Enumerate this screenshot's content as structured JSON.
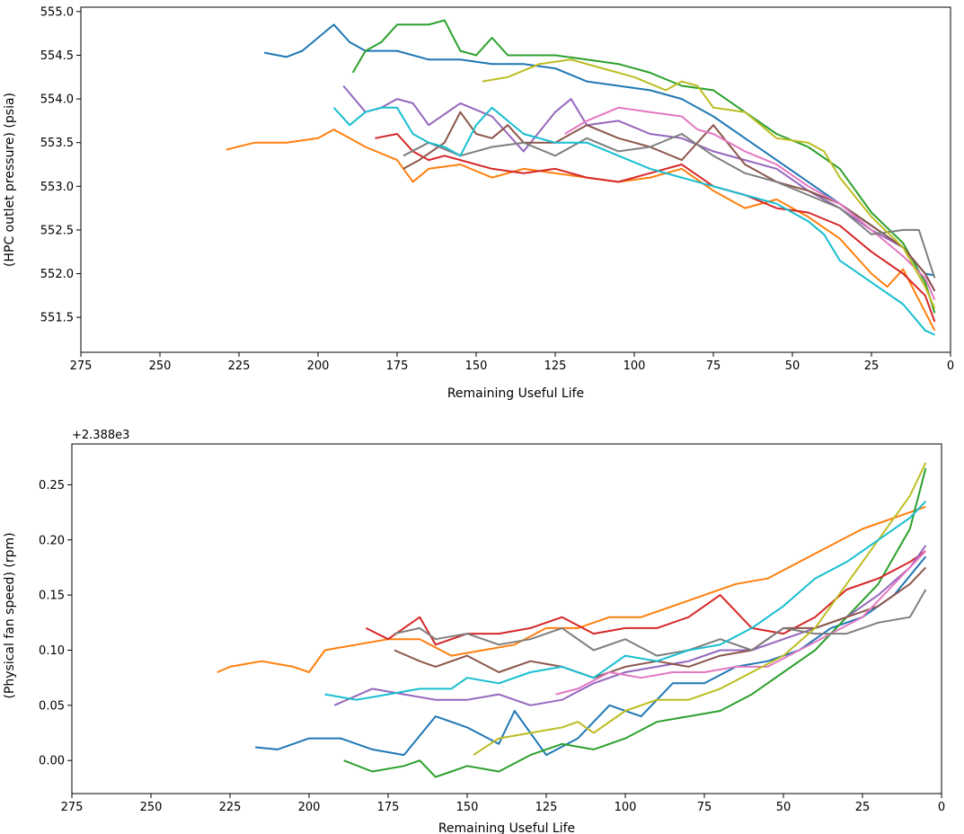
{
  "chart_data": [
    {
      "type": "line",
      "title": "",
      "xlabel": "Remaining Useful Life",
      "ylabel": "(HPC outlet pressure) (psia)",
      "offset_text": "",
      "x_inverted": true,
      "xlim": [
        275,
        0
      ],
      "ylim": [
        551.1,
        555.05
      ],
      "xticks": [
        275,
        250,
        225,
        200,
        175,
        150,
        125,
        100,
        75,
        50,
        25,
        0
      ],
      "yticks": [
        551.5,
        552.0,
        552.5,
        553.0,
        553.5,
        554.0,
        554.5,
        555.0
      ],
      "ytick_labels": [
        "551.5",
        "552.0",
        "552.5",
        "553.0",
        "553.5",
        "554.0",
        "554.5",
        "555.0"
      ],
      "grid": false,
      "series": [
        {
          "color": "#1f77b4",
          "x": [
            217,
            210,
            205,
            195,
            190,
            185,
            175,
            165,
            155,
            145,
            135,
            125,
            115,
            105,
            95,
            85,
            75,
            65,
            55,
            45,
            35,
            25,
            15,
            8,
            5
          ],
          "y": [
            554.53,
            554.48,
            554.55,
            554.85,
            554.65,
            554.55,
            554.55,
            554.45,
            554.45,
            554.4,
            554.4,
            554.35,
            554.2,
            554.15,
            554.1,
            554.0,
            553.8,
            553.55,
            553.3,
            553.05,
            552.8,
            552.55,
            552.3,
            552.0,
            551.98
          ]
        },
        {
          "color": "#ff7f0e",
          "x": [
            229,
            220,
            210,
            200,
            195,
            185,
            175,
            170,
            165,
            155,
            145,
            135,
            125,
            115,
            105,
            95,
            85,
            75,
            65,
            55,
            45,
            35,
            25,
            20,
            15,
            10,
            5
          ],
          "y": [
            553.42,
            553.5,
            553.5,
            553.55,
            553.65,
            553.45,
            553.3,
            553.05,
            553.2,
            553.25,
            553.1,
            553.2,
            553.15,
            553.1,
            553.05,
            553.1,
            553.2,
            552.95,
            552.75,
            552.85,
            552.65,
            552.4,
            552.0,
            551.85,
            552.05,
            551.7,
            551.35
          ]
        },
        {
          "color": "#2ca02c",
          "x": [
            189,
            185,
            180,
            175,
            170,
            165,
            160,
            155,
            150,
            145,
            140,
            135,
            125,
            115,
            105,
            95,
            85,
            75,
            65,
            55,
            45,
            35,
            25,
            15,
            8,
            5
          ],
          "y": [
            554.3,
            554.55,
            554.65,
            554.85,
            554.85,
            554.85,
            554.9,
            554.55,
            554.5,
            554.7,
            554.5,
            554.5,
            554.5,
            554.45,
            554.4,
            554.3,
            554.15,
            554.1,
            553.85,
            553.6,
            553.45,
            553.2,
            552.7,
            552.35,
            551.9,
            551.55
          ]
        },
        {
          "color": "#d62728",
          "x": [
            182,
            175,
            170,
            165,
            160,
            155,
            145,
            135,
            125,
            115,
            105,
            95,
            85,
            75,
            65,
            55,
            45,
            35,
            25,
            15,
            8,
            5
          ],
          "y": [
            553.55,
            553.6,
            553.4,
            553.3,
            553.35,
            553.3,
            553.2,
            553.15,
            553.2,
            553.1,
            553.05,
            553.15,
            553.25,
            553.0,
            552.9,
            552.75,
            552.7,
            552.55,
            552.25,
            552.0,
            551.75,
            551.45
          ]
        },
        {
          "color": "#9467bd",
          "x": [
            192,
            185,
            180,
            175,
            170,
            165,
            155,
            145,
            135,
            125,
            120,
            115,
            105,
            95,
            85,
            75,
            65,
            55,
            45,
            35,
            25,
            15,
            8,
            5
          ],
          "y": [
            554.15,
            553.85,
            553.9,
            554.0,
            553.95,
            553.7,
            553.95,
            553.8,
            553.4,
            553.85,
            554.0,
            553.7,
            553.75,
            553.6,
            553.55,
            553.4,
            553.3,
            553.2,
            552.95,
            552.75,
            552.5,
            552.3,
            552.0,
            551.8
          ]
        },
        {
          "color": "#8c564b",
          "x": [
            173,
            168,
            160,
            155,
            150,
            145,
            140,
            135,
            125,
            115,
            105,
            95,
            85,
            75,
            65,
            55,
            45,
            35,
            25,
            15,
            8,
            5
          ],
          "y": [
            553.2,
            553.3,
            553.5,
            553.85,
            553.6,
            553.55,
            553.7,
            553.5,
            553.5,
            553.7,
            553.55,
            553.45,
            553.3,
            553.7,
            553.25,
            553.05,
            552.95,
            552.8,
            552.55,
            552.3,
            552.0,
            551.8
          ]
        },
        {
          "color": "#e377c2",
          "x": [
            122,
            115,
            105,
            95,
            85,
            80,
            75,
            65,
            55,
            45,
            35,
            25,
            15,
            8,
            5
          ],
          "y": [
            553.6,
            553.75,
            553.9,
            553.85,
            553.8,
            553.65,
            553.6,
            553.4,
            553.25,
            553.0,
            552.8,
            552.5,
            552.2,
            551.95,
            551.7
          ]
        },
        {
          "color": "#7f7f7f",
          "x": [
            173,
            165,
            155,
            145,
            135,
            125,
            115,
            105,
            95,
            85,
            75,
            65,
            55,
            45,
            35,
            25,
            15,
            10,
            5
          ],
          "y": [
            553.35,
            553.5,
            553.35,
            553.45,
            553.5,
            553.35,
            553.55,
            553.4,
            553.45,
            553.6,
            553.35,
            553.15,
            553.05,
            552.9,
            552.75,
            552.45,
            552.5,
            552.5,
            551.95
          ]
        },
        {
          "color": "#bcbd22",
          "x": [
            148,
            140,
            130,
            120,
            110,
            100,
            90,
            85,
            80,
            75,
            65,
            55,
            45,
            40,
            35,
            25,
            15,
            8,
            5
          ],
          "y": [
            554.2,
            554.25,
            554.4,
            554.45,
            554.35,
            554.25,
            554.1,
            554.2,
            554.15,
            553.9,
            553.85,
            553.55,
            553.5,
            553.4,
            553.1,
            552.65,
            552.3,
            551.85,
            551.6
          ]
        },
        {
          "color": "#17becf",
          "x": [
            195,
            190,
            185,
            180,
            175,
            170,
            165,
            160,
            155,
            150,
            145,
            140,
            135,
            125,
            115,
            105,
            95,
            85,
            75,
            65,
            55,
            45,
            40,
            35,
            25,
            15,
            8,
            5
          ],
          "y": [
            553.9,
            553.7,
            553.85,
            553.9,
            553.9,
            553.6,
            553.5,
            553.45,
            553.35,
            553.7,
            553.9,
            553.75,
            553.6,
            553.5,
            553.5,
            553.35,
            553.2,
            553.1,
            553.0,
            552.9,
            552.8,
            552.6,
            552.45,
            552.15,
            551.9,
            551.65,
            551.35,
            551.3
          ]
        }
      ]
    },
    {
      "type": "line",
      "title": "",
      "xlabel": "Remaining Useful Life",
      "ylabel": "(Physical fan speed) (rpm)",
      "offset_text": "+2.388e3",
      "x_inverted": true,
      "xlim": [
        275,
        0
      ],
      "ylim": [
        -0.03,
        0.287
      ],
      "xticks": [
        275,
        250,
        225,
        200,
        175,
        150,
        125,
        100,
        75,
        50,
        25,
        0
      ],
      "yticks": [
        0.0,
        0.05,
        0.1,
        0.15,
        0.2,
        0.25
      ],
      "ytick_labels": [
        "0.00",
        "0.05",
        "0.10",
        "0.15",
        "0.20",
        "0.25"
      ],
      "grid": false,
      "series": [
        {
          "color": "#1f77b4",
          "x": [
            217,
            210,
            200,
            190,
            180,
            170,
            160,
            150,
            140,
            135,
            125,
            115,
            105,
            95,
            85,
            75,
            65,
            55,
            45,
            35,
            25,
            15,
            5
          ],
          "y": [
            0.012,
            0.01,
            0.02,
            0.02,
            0.01,
            0.005,
            0.04,
            0.03,
            0.015,
            0.045,
            0.005,
            0.02,
            0.05,
            0.04,
            0.07,
            0.07,
            0.085,
            0.09,
            0.1,
            0.12,
            0.13,
            0.15,
            0.185
          ]
        },
        {
          "color": "#ff7f0e",
          "x": [
            229,
            225,
            215,
            205,
            200,
            195,
            185,
            175,
            165,
            155,
            145,
            135,
            125,
            115,
            105,
            95,
            85,
            75,
            65,
            55,
            45,
            35,
            25,
            15,
            5
          ],
          "y": [
            0.08,
            0.085,
            0.09,
            0.085,
            0.08,
            0.1,
            0.105,
            0.11,
            0.11,
            0.095,
            0.1,
            0.105,
            0.12,
            0.12,
            0.13,
            0.13,
            0.14,
            0.15,
            0.16,
            0.165,
            0.18,
            0.195,
            0.21,
            0.22,
            0.23
          ]
        },
        {
          "color": "#2ca02c",
          "x": [
            189,
            180,
            170,
            165,
            160,
            155,
            150,
            140,
            130,
            120,
            110,
            100,
            90,
            80,
            70,
            60,
            50,
            40,
            30,
            20,
            10,
            5
          ],
          "y": [
            0.0,
            -0.01,
            -0.005,
            0.0,
            -0.015,
            -0.01,
            -0.005,
            -0.01,
            0.005,
            0.015,
            0.01,
            0.02,
            0.035,
            0.04,
            0.045,
            0.06,
            0.08,
            0.1,
            0.13,
            0.16,
            0.21,
            0.265
          ]
        },
        {
          "color": "#d62728",
          "x": [
            182,
            175,
            165,
            160,
            150,
            140,
            130,
            120,
            110,
            100,
            90,
            80,
            70,
            60,
            50,
            40,
            30,
            20,
            10,
            5
          ],
          "y": [
            0.12,
            0.11,
            0.13,
            0.105,
            0.115,
            0.115,
            0.12,
            0.13,
            0.115,
            0.12,
            0.12,
            0.13,
            0.15,
            0.12,
            0.115,
            0.13,
            0.155,
            0.165,
            0.18,
            0.19
          ]
        },
        {
          "color": "#9467bd",
          "x": [
            192,
            180,
            170,
            160,
            150,
            140,
            130,
            120,
            110,
            100,
            90,
            80,
            70,
            60,
            50,
            40,
            30,
            20,
            10,
            5
          ],
          "y": [
            0.05,
            0.065,
            0.06,
            0.055,
            0.055,
            0.06,
            0.05,
            0.055,
            0.07,
            0.08,
            0.085,
            0.09,
            0.1,
            0.1,
            0.11,
            0.12,
            0.13,
            0.15,
            0.175,
            0.195
          ]
        },
        {
          "color": "#8c564b",
          "x": [
            173,
            165,
            160,
            150,
            140,
            130,
            120,
            110,
            100,
            90,
            80,
            70,
            60,
            50,
            40,
            30,
            20,
            10,
            5
          ],
          "y": [
            0.1,
            0.09,
            0.085,
            0.095,
            0.08,
            0.09,
            0.085,
            0.075,
            0.085,
            0.09,
            0.085,
            0.095,
            0.1,
            0.12,
            0.12,
            0.13,
            0.14,
            0.16,
            0.175
          ]
        },
        {
          "color": "#e377c2",
          "x": [
            122,
            115,
            105,
            95,
            85,
            75,
            65,
            55,
            45,
            35,
            25,
            15,
            5
          ],
          "y": [
            0.06,
            0.065,
            0.08,
            0.075,
            0.08,
            0.08,
            0.085,
            0.085,
            0.1,
            0.115,
            0.13,
            0.16,
            0.19
          ]
        },
        {
          "color": "#7f7f7f",
          "x": [
            173,
            165,
            160,
            150,
            140,
            130,
            120,
            110,
            100,
            90,
            80,
            70,
            60,
            50,
            40,
            30,
            20,
            10,
            5
          ],
          "y": [
            0.115,
            0.12,
            0.11,
            0.115,
            0.105,
            0.11,
            0.12,
            0.1,
            0.11,
            0.095,
            0.1,
            0.11,
            0.1,
            0.12,
            0.115,
            0.115,
            0.125,
            0.13,
            0.155
          ]
        },
        {
          "color": "#bcbd22",
          "x": [
            148,
            140,
            130,
            120,
            115,
            110,
            100,
            90,
            80,
            70,
            60,
            50,
            40,
            30,
            20,
            10,
            5
          ],
          "y": [
            0.005,
            0.02,
            0.025,
            0.03,
            0.035,
            0.025,
            0.045,
            0.055,
            0.055,
            0.065,
            0.08,
            0.095,
            0.12,
            0.16,
            0.2,
            0.24,
            0.27
          ]
        },
        {
          "color": "#17becf",
          "x": [
            195,
            185,
            175,
            165,
            155,
            150,
            140,
            130,
            120,
            110,
            100,
            90,
            80,
            70,
            60,
            50,
            40,
            30,
            20,
            10,
            5
          ],
          "y": [
            0.06,
            0.055,
            0.06,
            0.065,
            0.065,
            0.075,
            0.07,
            0.08,
            0.085,
            0.075,
            0.095,
            0.09,
            0.1,
            0.105,
            0.12,
            0.14,
            0.165,
            0.18,
            0.2,
            0.22,
            0.235
          ]
        }
      ]
    }
  ]
}
